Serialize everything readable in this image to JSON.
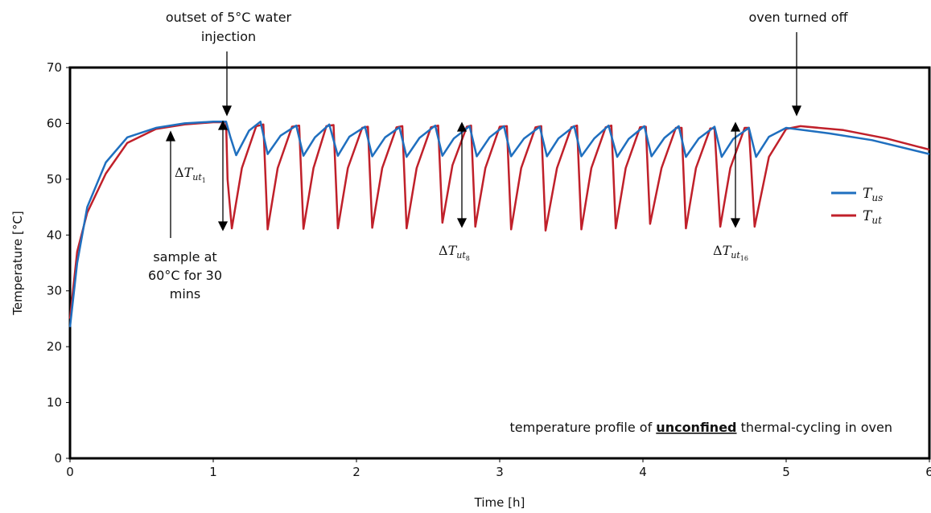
{
  "chart_data": {
    "type": "line",
    "xlabel": "Time [h]",
    "ylabel": "Temperature [°C]",
    "xlim": [
      0,
      6
    ],
    "ylim": [
      0,
      70
    ],
    "x_ticks": [
      "0",
      "1",
      "2",
      "3",
      "4",
      "5",
      "6"
    ],
    "y_ticks": [
      "0",
      "10",
      "20",
      "30",
      "40",
      "50",
      "60",
      "70"
    ],
    "grid": false,
    "legend": "right",
    "series": [
      {
        "name": "T_us",
        "color": "#1f6fbf",
        "x": [
          0.0,
          0.05,
          0.12,
          0.25,
          0.4,
          0.6,
          0.8,
          1.0,
          1.09,
          1.12,
          1.16,
          1.25,
          1.33,
          1.38,
          1.47,
          1.58,
          1.63,
          1.71,
          1.81,
          1.87,
          1.95,
          2.06,
          2.11,
          2.2,
          2.3,
          2.35,
          2.44,
          2.55,
          2.6,
          2.68,
          2.79,
          2.84,
          2.93,
          3.03,
          3.08,
          3.17,
          3.28,
          3.33,
          3.41,
          3.52,
          3.57,
          3.66,
          3.76,
          3.82,
          3.9,
          4.01,
          4.06,
          4.15,
          4.25,
          4.3,
          4.39,
          4.5,
          4.55,
          4.63,
          4.74,
          4.79,
          4.88,
          5.0,
          5.3,
          5.6,
          6.0
        ],
        "y": [
          23.5,
          35,
          45,
          53,
          57.5,
          59.2,
          60,
          60.3,
          60.3,
          57.5,
          54.3,
          58.7,
          60.3,
          54.5,
          57.8,
          59.6,
          54.2,
          57.5,
          59.8,
          54.2,
          57.6,
          59.4,
          54.1,
          57.5,
          59.3,
          54,
          57.4,
          59.6,
          54.2,
          57.3,
          59.5,
          54.1,
          57.5,
          59.5,
          54.1,
          57.3,
          59.4,
          54.1,
          57.3,
          59.5,
          54.1,
          57.3,
          59.6,
          54,
          57.2,
          59.5,
          54.1,
          57.4,
          59.5,
          54,
          57.3,
          59.4,
          54,
          57.2,
          59.2,
          54,
          57.6,
          59.2,
          58.2,
          57.0,
          54.5
        ]
      },
      {
        "name": "T_ut",
        "color": "#c0202a",
        "x": [
          0.0,
          0.05,
          0.12,
          0.25,
          0.4,
          0.6,
          0.8,
          1.0,
          1.09,
          1.1,
          1.13,
          1.2,
          1.3,
          1.35,
          1.38,
          1.45,
          1.55,
          1.6,
          1.63,
          1.7,
          1.79,
          1.84,
          1.87,
          1.94,
          2.04,
          2.08,
          2.11,
          2.18,
          2.28,
          2.32,
          2.35,
          2.42,
          2.52,
          2.57,
          2.6,
          2.67,
          2.77,
          2.8,
          2.83,
          2.9,
          3.0,
          3.05,
          3.08,
          3.15,
          3.25,
          3.29,
          3.32,
          3.4,
          3.5,
          3.54,
          3.57,
          3.64,
          3.74,
          3.78,
          3.81,
          3.88,
          3.98,
          4.02,
          4.05,
          4.13,
          4.23,
          4.27,
          4.3,
          4.37,
          4.47,
          4.5,
          4.54,
          4.61,
          4.71,
          4.74,
          4.78,
          4.88,
          5.0,
          5.1,
          5.4,
          5.7,
          6.0
        ],
        "y": [
          25,
          37,
          44,
          51,
          56.5,
          59,
          59.8,
          60.2,
          60.2,
          50,
          41.2,
          52,
          59.5,
          59.8,
          41,
          52,
          59.4,
          59.6,
          41.1,
          52,
          59.5,
          59.7,
          41.2,
          52,
          59.2,
          59.4,
          41.3,
          52,
          59.3,
          59.5,
          41.2,
          52,
          59.3,
          59.6,
          42.2,
          52.5,
          59.4,
          59.6,
          41.5,
          52,
          59.4,
          59.5,
          41,
          52,
          59.3,
          59.5,
          40.8,
          52,
          59.3,
          59.6,
          41,
          52,
          59.3,
          59.6,
          41.2,
          52,
          59.3,
          59.4,
          42,
          52,
          59.2,
          59.2,
          41.2,
          52,
          59.1,
          59.1,
          41.5,
          52,
          59.2,
          59.2,
          41.5,
          54,
          59,
          59.5,
          58.8,
          57.3,
          55.3
        ]
      }
    ],
    "legend_entries": [
      {
        "base": "T",
        "sub": "us",
        "color": "#1f6fbf"
      },
      {
        "base": "T",
        "sub": "ut",
        "color": "#c0202a"
      }
    ],
    "annotations": {
      "outset_line1": "outset of 5°C water",
      "outset_line2": "injection",
      "oven_off": "oven turned off",
      "sample_line1": "sample at",
      "sample_line2": "60°C for 30",
      "sample_line3": "mins",
      "footer_prefix": "temperature profile of ",
      "footer_bold": "unconfined",
      "footer_suffix": " thermal-cycling in oven",
      "delta_symbol": "Δ",
      "delta_base": "T",
      "delta_sub": "ut",
      "delta_1": "1",
      "delta_8": "8",
      "delta_16": "16"
    }
  }
}
